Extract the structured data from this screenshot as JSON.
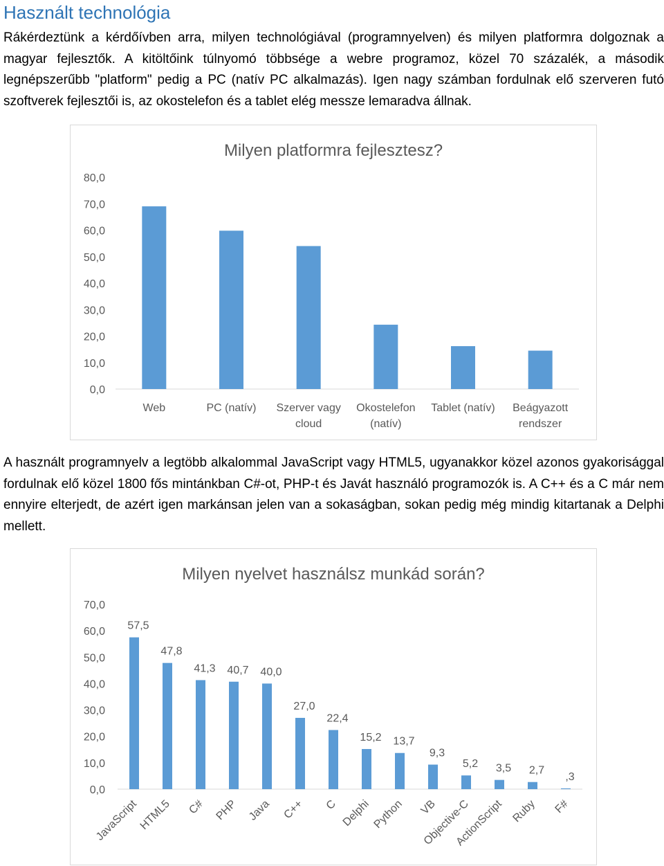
{
  "section_title": "Használt technológia",
  "paragraph1": "Rákérdeztünk a kérdőívben arra, milyen technológiával (programnyelven) és milyen platformra dolgoznak a magyar fejlesztők. A kitöltőink túlnyomó többsége a webre programoz, közel 70 százalék, a második legnépszerűbb \"platform\" pedig a PC (natív PC alkalmazás). Igen nagy számban fordulnak elő szerveren futó szoftverek fejlesztői is, az okostelefon és a tablet elég messze lemaradva állnak.",
  "paragraph2": "A használt programnyelv a legtöbb alkalommal JavaScript vagy HTML5, ugyanakkor közel azonos gyakorisággal fordulnak elő közel 1800 fős mintánkban C#-ot, PHP-t és Javát használó programozók is. A C++ és a C már nem ennyire elterjedt, de azért igen markánsan jelen van a sokaságban, sokan pedig még mindig kitartanak a Delphi mellett.",
  "chart_data": [
    {
      "type": "bar",
      "title": "Milyen platformra fejlesztesz?",
      "categories": [
        "Web",
        "PC (natív)",
        "Szerver vagy cloud",
        "Okostelefon (natív)",
        "Tablet (natív)",
        "Beágyazott rendszer"
      ],
      "category_lines": [
        [
          "Web"
        ],
        [
          "PC (natív)"
        ],
        [
          "Szerver vagy",
          "cloud"
        ],
        [
          "Okostelefon",
          "(natív)"
        ],
        [
          "Tablet (natív)"
        ],
        [
          "Beágyazott",
          "rendszer"
        ]
      ],
      "values": [
        69,
        59.8,
        54,
        24.3,
        16.2,
        14.5
      ],
      "ylim": [
        0,
        80
      ],
      "yticks": [
        "0,0",
        "10,0",
        "20,0",
        "30,0",
        "40,0",
        "50,0",
        "60,0",
        "70,0",
        "80,0"
      ],
      "grid": false,
      "legend": "none",
      "bar_color": "#5b9bd5"
    },
    {
      "type": "bar",
      "title": "Milyen nyelvet használsz munkád során?",
      "categories": [
        "JavaScript",
        "HTML5",
        "C#",
        "PHP",
        "Java",
        "C++",
        "C",
        "Delphi",
        "Python",
        "VB",
        "Objective-C",
        "ActionScript",
        "Ruby",
        "F#"
      ],
      "values": [
        57.5,
        47.8,
        41.3,
        40.7,
        40.0,
        27.0,
        22.4,
        15.2,
        13.7,
        9.3,
        5.2,
        3.5,
        2.7,
        0.3
      ],
      "data_labels": [
        "57,5",
        "47,8",
        "41,3",
        "40,7",
        "40,0",
        "27,0",
        "22,4",
        "15,2",
        "13,7",
        "9,3",
        "5,2",
        "3,5",
        "2,7",
        ",3"
      ],
      "ylim": [
        0,
        70
      ],
      "yticks": [
        "0,0",
        "10,0",
        "20,0",
        "30,0",
        "40,0",
        "50,0",
        "60,0",
        "70,0"
      ],
      "grid": false,
      "legend": "none",
      "bar_color": "#5b9bd5"
    }
  ]
}
